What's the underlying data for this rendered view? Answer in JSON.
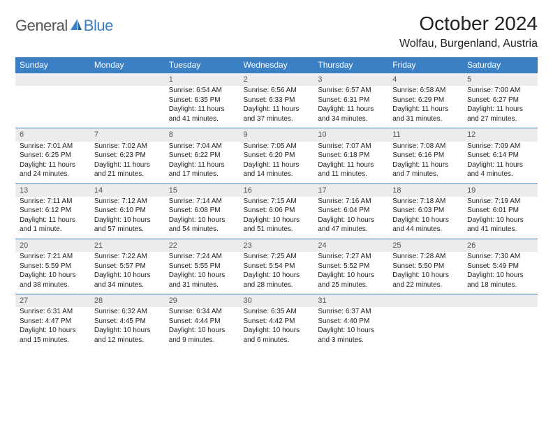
{
  "logo": {
    "general": "General",
    "blue": "Blue"
  },
  "title": "October 2024",
  "location": "Wolfau, Burgenland, Austria",
  "colors": {
    "header_bg": "#3b7fc4",
    "daynum_bg": "#ececec",
    "border": "#3b7fc4",
    "text": "#222222",
    "muted": "#555555",
    "background": "#ffffff"
  },
  "dayHeaders": [
    "Sunday",
    "Monday",
    "Tuesday",
    "Wednesday",
    "Thursday",
    "Friday",
    "Saturday"
  ],
  "weeks": [
    [
      {
        "num": "",
        "sunrise": "",
        "sunset": "",
        "daylight": ""
      },
      {
        "num": "",
        "sunrise": "",
        "sunset": "",
        "daylight": ""
      },
      {
        "num": "1",
        "sunrise": "Sunrise: 6:54 AM",
        "sunset": "Sunset: 6:35 PM",
        "daylight": "Daylight: 11 hours and 41 minutes."
      },
      {
        "num": "2",
        "sunrise": "Sunrise: 6:56 AM",
        "sunset": "Sunset: 6:33 PM",
        "daylight": "Daylight: 11 hours and 37 minutes."
      },
      {
        "num": "3",
        "sunrise": "Sunrise: 6:57 AM",
        "sunset": "Sunset: 6:31 PM",
        "daylight": "Daylight: 11 hours and 34 minutes."
      },
      {
        "num": "4",
        "sunrise": "Sunrise: 6:58 AM",
        "sunset": "Sunset: 6:29 PM",
        "daylight": "Daylight: 11 hours and 31 minutes."
      },
      {
        "num": "5",
        "sunrise": "Sunrise: 7:00 AM",
        "sunset": "Sunset: 6:27 PM",
        "daylight": "Daylight: 11 hours and 27 minutes."
      }
    ],
    [
      {
        "num": "6",
        "sunrise": "Sunrise: 7:01 AM",
        "sunset": "Sunset: 6:25 PM",
        "daylight": "Daylight: 11 hours and 24 minutes."
      },
      {
        "num": "7",
        "sunrise": "Sunrise: 7:02 AM",
        "sunset": "Sunset: 6:23 PM",
        "daylight": "Daylight: 11 hours and 21 minutes."
      },
      {
        "num": "8",
        "sunrise": "Sunrise: 7:04 AM",
        "sunset": "Sunset: 6:22 PM",
        "daylight": "Daylight: 11 hours and 17 minutes."
      },
      {
        "num": "9",
        "sunrise": "Sunrise: 7:05 AM",
        "sunset": "Sunset: 6:20 PM",
        "daylight": "Daylight: 11 hours and 14 minutes."
      },
      {
        "num": "10",
        "sunrise": "Sunrise: 7:07 AM",
        "sunset": "Sunset: 6:18 PM",
        "daylight": "Daylight: 11 hours and 11 minutes."
      },
      {
        "num": "11",
        "sunrise": "Sunrise: 7:08 AM",
        "sunset": "Sunset: 6:16 PM",
        "daylight": "Daylight: 11 hours and 7 minutes."
      },
      {
        "num": "12",
        "sunrise": "Sunrise: 7:09 AM",
        "sunset": "Sunset: 6:14 PM",
        "daylight": "Daylight: 11 hours and 4 minutes."
      }
    ],
    [
      {
        "num": "13",
        "sunrise": "Sunrise: 7:11 AM",
        "sunset": "Sunset: 6:12 PM",
        "daylight": "Daylight: 11 hours and 1 minute."
      },
      {
        "num": "14",
        "sunrise": "Sunrise: 7:12 AM",
        "sunset": "Sunset: 6:10 PM",
        "daylight": "Daylight: 10 hours and 57 minutes."
      },
      {
        "num": "15",
        "sunrise": "Sunrise: 7:14 AM",
        "sunset": "Sunset: 6:08 PM",
        "daylight": "Daylight: 10 hours and 54 minutes."
      },
      {
        "num": "16",
        "sunrise": "Sunrise: 7:15 AM",
        "sunset": "Sunset: 6:06 PM",
        "daylight": "Daylight: 10 hours and 51 minutes."
      },
      {
        "num": "17",
        "sunrise": "Sunrise: 7:16 AM",
        "sunset": "Sunset: 6:04 PM",
        "daylight": "Daylight: 10 hours and 47 minutes."
      },
      {
        "num": "18",
        "sunrise": "Sunrise: 7:18 AM",
        "sunset": "Sunset: 6:03 PM",
        "daylight": "Daylight: 10 hours and 44 minutes."
      },
      {
        "num": "19",
        "sunrise": "Sunrise: 7:19 AM",
        "sunset": "Sunset: 6:01 PM",
        "daylight": "Daylight: 10 hours and 41 minutes."
      }
    ],
    [
      {
        "num": "20",
        "sunrise": "Sunrise: 7:21 AM",
        "sunset": "Sunset: 5:59 PM",
        "daylight": "Daylight: 10 hours and 38 minutes."
      },
      {
        "num": "21",
        "sunrise": "Sunrise: 7:22 AM",
        "sunset": "Sunset: 5:57 PM",
        "daylight": "Daylight: 10 hours and 34 minutes."
      },
      {
        "num": "22",
        "sunrise": "Sunrise: 7:24 AM",
        "sunset": "Sunset: 5:55 PM",
        "daylight": "Daylight: 10 hours and 31 minutes."
      },
      {
        "num": "23",
        "sunrise": "Sunrise: 7:25 AM",
        "sunset": "Sunset: 5:54 PM",
        "daylight": "Daylight: 10 hours and 28 minutes."
      },
      {
        "num": "24",
        "sunrise": "Sunrise: 7:27 AM",
        "sunset": "Sunset: 5:52 PM",
        "daylight": "Daylight: 10 hours and 25 minutes."
      },
      {
        "num": "25",
        "sunrise": "Sunrise: 7:28 AM",
        "sunset": "Sunset: 5:50 PM",
        "daylight": "Daylight: 10 hours and 22 minutes."
      },
      {
        "num": "26",
        "sunrise": "Sunrise: 7:30 AM",
        "sunset": "Sunset: 5:49 PM",
        "daylight": "Daylight: 10 hours and 18 minutes."
      }
    ],
    [
      {
        "num": "27",
        "sunrise": "Sunrise: 6:31 AM",
        "sunset": "Sunset: 4:47 PM",
        "daylight": "Daylight: 10 hours and 15 minutes."
      },
      {
        "num": "28",
        "sunrise": "Sunrise: 6:32 AM",
        "sunset": "Sunset: 4:45 PM",
        "daylight": "Daylight: 10 hours and 12 minutes."
      },
      {
        "num": "29",
        "sunrise": "Sunrise: 6:34 AM",
        "sunset": "Sunset: 4:44 PM",
        "daylight": "Daylight: 10 hours and 9 minutes."
      },
      {
        "num": "30",
        "sunrise": "Sunrise: 6:35 AM",
        "sunset": "Sunset: 4:42 PM",
        "daylight": "Daylight: 10 hours and 6 minutes."
      },
      {
        "num": "31",
        "sunrise": "Sunrise: 6:37 AM",
        "sunset": "Sunset: 4:40 PM",
        "daylight": "Daylight: 10 hours and 3 minutes."
      },
      {
        "num": "",
        "sunrise": "",
        "sunset": "",
        "daylight": ""
      },
      {
        "num": "",
        "sunrise": "",
        "sunset": "",
        "daylight": ""
      }
    ]
  ]
}
